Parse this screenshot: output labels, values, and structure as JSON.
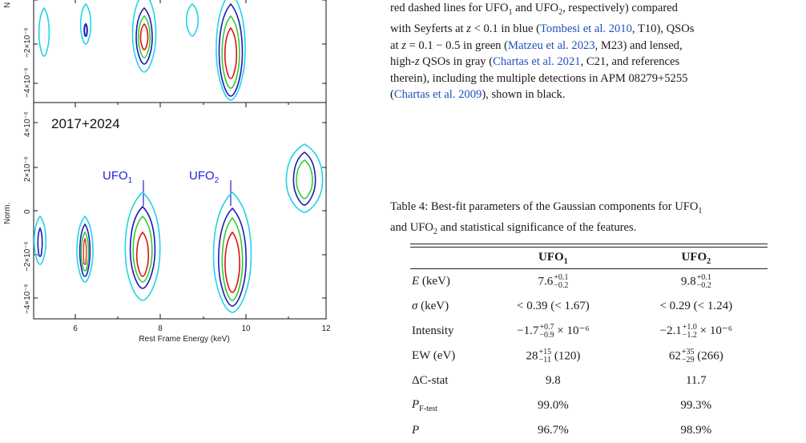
{
  "figure": {
    "top_panel": {
      "ylabel_partial": "N",
      "y_ticks": [
        "−2×10⁻⁶",
        "−4×10⁻⁶"
      ]
    },
    "bottom_panel": {
      "label": "2017+2024",
      "ylabel": "Norm.",
      "y_ticks": [
        "4×10⁻⁶",
        "2×10⁻⁶",
        "0",
        "−2×10⁻⁶",
        "−4×10⁻⁶"
      ],
      "ufo1_label": "UFO",
      "ufo1_sub": "1",
      "ufo2_label": "UFO",
      "ufo2_sub": "2"
    },
    "x_ticks": [
      "6",
      "8",
      "10",
      "12"
    ],
    "xlabel": "Rest Frame Energy (keV)",
    "contour_colors": {
      "outer": "#22d3e6",
      "second": "#1a1ab8",
      "third": "#33cc33",
      "inner": "#dd1111"
    }
  },
  "text": {
    "line1a": "red dashed lines for UFO",
    "line1sub1": "1",
    "line1b": " and UFO",
    "line1sub2": "2",
    "line1c": ", respectively) compared",
    "line2a": "with Seyferts at ",
    "line2z": "z",
    "line2b": " < 0.1 in blue (",
    "cite1": "Tombesi et al. 2010",
    "line2c": ", T10), QSOs",
    "line3a": "at ",
    "line3z": "z",
    "line3b": " = 0.1 − 0.5 in green (",
    "cite2": "Matzeu et al. 2023",
    "line3c": ", M23) and lensed,",
    "line4a": "high-",
    "line4z": "z",
    "line4b": " QSOs in gray (",
    "cite3": "Chartas et al. 2021",
    "line4c": ", C21, and references",
    "line5": "therein), including the multiple detections in APM 08279+5255",
    "line6a": "(",
    "cite4": "Chartas et al. 2009",
    "line6b": "), shown in black."
  },
  "caption": {
    "a": "Table 4: Best-fit parameters of the Gaussian components for UFO",
    "sub1": "1",
    "b": "and UFO",
    "sub2": "2",
    "c": " and statistical significance of the features."
  },
  "table": {
    "headers": [
      {
        "main": "",
        "sub": ""
      },
      {
        "main": "UFO",
        "sub": "1"
      },
      {
        "main": "UFO",
        "sub": "2"
      }
    ],
    "rows": [
      {
        "label": "E (keV)",
        "c1": "7.6",
        "c1_sup": "+0.1",
        "c1_sub": "−0.2",
        "c2": "9.8",
        "c2_sup": "+0.1",
        "c2_sub": "−0.2"
      },
      {
        "label": "σ (keV)",
        "c1": "< 0.39 (< 1.67)",
        "c2": "< 0.29 (< 1.24)"
      },
      {
        "label": "Intensity",
        "c1": "−1.7",
        "c1_sup": "+0.7",
        "c1_sub": "−0.9",
        "c1_tail": " × 10⁻⁶",
        "c2": "−2.1",
        "c2_sup": "+1.0",
        "c2_sub": "−1.2",
        "c2_tail": " × 10⁻⁶"
      },
      {
        "label": "EW (eV)",
        "c1": "28",
        "c1_sup": "+15",
        "c1_sub": "−11",
        "c1_tail": " (120)",
        "c2": "62",
        "c2_sup": "+35",
        "c2_sub": "−29",
        "c2_tail": " (266)"
      },
      {
        "label": "ΔC-stat",
        "c1": "9.8",
        "c2": "11.7"
      },
      {
        "label": "P",
        "label_sub": "F-test",
        "c1": "99.0%",
        "c2": "99.3%"
      },
      {
        "label": "P",
        "c1": "96.7%",
        "c2": "98.9%"
      }
    ]
  }
}
